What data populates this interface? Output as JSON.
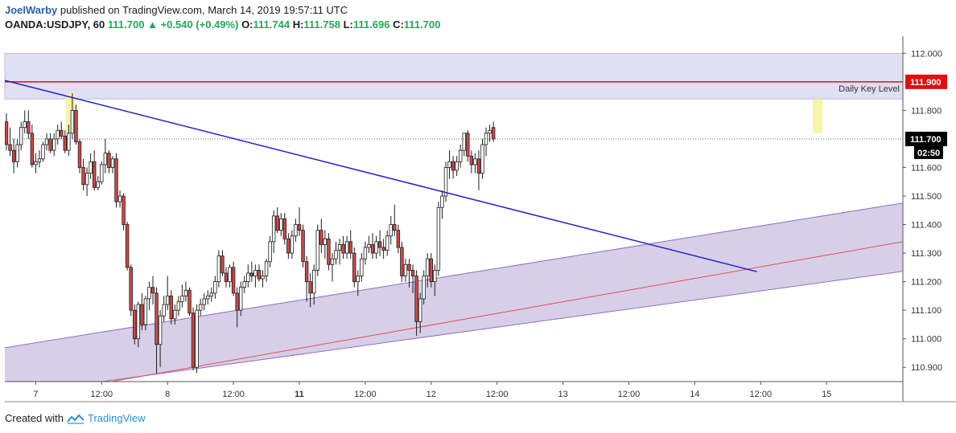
{
  "header": {
    "author": "JoelWarby",
    "published_text": "published on TradingView.com, March 14, 2019 19:57:11 UTC"
  },
  "symbol_line": {
    "symbol": "OANDA:USDJPY, 60",
    "last": "111.700",
    "arrow": "▲",
    "change": "+0.540 (+0.49%)",
    "o_label": "O:",
    "o_value": "111.744",
    "h_label": "H:",
    "h_value": "111.758",
    "l_label": "L:",
    "l_value": "111.696",
    "c_label": "C:",
    "c_value": "111.700"
  },
  "footer": {
    "created_with": "Created with",
    "brand": "TradingView"
  },
  "colors": {
    "up_candle": "#ffffff",
    "down_candle": "#d84545",
    "wick": "#1c1c1c",
    "trendline": "#2020d0",
    "key_level": "#e01010",
    "channel_fill": "#c9bfe0",
    "channel_border": "#9070c0",
    "channel_mid": "#e05050",
    "zone_fill": "#dfe0f4",
    "highlight": "#f6f3a0",
    "price_tag": "#000000",
    "key_tag": "#e01010"
  },
  "chart_data": {
    "type": "candlestick",
    "symbol": "OANDA:USDJPY",
    "timeframe": "60",
    "ylim": [
      110.85,
      112.06
    ],
    "y_ticks": [
      "112.000",
      "111.800",
      "111.600",
      "111.500",
      "111.400",
      "111.300",
      "111.200",
      "111.100",
      "111.000",
      "110.900"
    ],
    "x_ticks": [
      {
        "label": "7",
        "bold": false
      },
      {
        "label": "12:00",
        "bold": false
      },
      {
        "label": "8",
        "bold": false
      },
      {
        "label": "12:00",
        "bold": false
      },
      {
        "label": "11",
        "bold": true
      },
      {
        "label": "12:00",
        "bold": false
      },
      {
        "label": "12",
        "bold": false
      },
      {
        "label": "12:00",
        "bold": false
      },
      {
        "label": "13",
        "bold": false
      },
      {
        "label": "12:00",
        "bold": false
      },
      {
        "label": "14",
        "bold": false
      },
      {
        "label": "12:00",
        "bold": false
      },
      {
        "label": "15",
        "bold": false
      }
    ],
    "x_tick_index": [
      8,
      26,
      44,
      62,
      80,
      98,
      116,
      134,
      152,
      170,
      188,
      206,
      224
    ],
    "current_price": "111.700",
    "countdown": "02:50",
    "key_level": {
      "value": 111.9,
      "label": "Daily Key Level",
      "tag": "111.900"
    },
    "resistance_zone": [
      111.84,
      112.0
    ],
    "trendline": {
      "from": [
        0,
        111.905
      ],
      "to": [
        205,
        111.235
      ]
    },
    "channel": {
      "start_index": 0,
      "end_index": 247,
      "upper": [
        110.965,
        111.48
      ],
      "middle": [
        110.86,
        111.345
      ],
      "lower": [
        110.85,
        111.24
      ]
    },
    "highlights": [
      {
        "index": 17.5,
        "low": 111.72,
        "high": 111.86
      },
      {
        "index": 221.5,
        "low": 111.72,
        "high": 111.84
      }
    ],
    "candles": [
      [
        111.76,
        111.79,
        111.66,
        111.68
      ],
      [
        111.68,
        111.74,
        111.64,
        111.66
      ],
      [
        111.66,
        111.7,
        111.58,
        111.62
      ],
      [
        111.62,
        111.7,
        111.6,
        111.68
      ],
      [
        111.68,
        111.76,
        111.66,
        111.74
      ],
      [
        111.74,
        111.8,
        111.72,
        111.76
      ],
      [
        111.76,
        111.8,
        111.7,
        111.72
      ],
      [
        111.72,
        111.75,
        111.6,
        111.61
      ],
      [
        111.61,
        111.65,
        111.58,
        111.62
      ],
      [
        111.62,
        111.66,
        111.6,
        111.63
      ],
      [
        111.63,
        111.69,
        111.62,
        111.68
      ],
      [
        111.68,
        111.72,
        111.66,
        111.7
      ],
      [
        111.7,
        111.72,
        111.65,
        111.66
      ],
      [
        111.66,
        111.72,
        111.64,
        111.7
      ],
      [
        111.7,
        111.75,
        111.68,
        111.73
      ],
      [
        111.73,
        111.76,
        111.7,
        111.71
      ],
      [
        111.71,
        111.73,
        111.65,
        111.66
      ],
      [
        111.66,
        111.75,
        111.64,
        111.72
      ],
      [
        111.72,
        111.86,
        111.7,
        111.8
      ],
      [
        111.8,
        111.82,
        111.68,
        111.69
      ],
      [
        111.69,
        111.7,
        111.58,
        111.6
      ],
      [
        111.6,
        111.63,
        111.52,
        111.54
      ],
      [
        111.54,
        111.6,
        111.5,
        111.58
      ],
      [
        111.58,
        111.65,
        111.56,
        111.62
      ],
      [
        111.62,
        111.66,
        111.52,
        111.53
      ],
      [
        111.53,
        111.57,
        111.52,
        111.55
      ],
      [
        111.55,
        111.62,
        111.54,
        111.61
      ],
      [
        111.61,
        111.7,
        111.58,
        111.65
      ],
      [
        111.65,
        111.66,
        111.58,
        111.6
      ],
      [
        111.6,
        111.64,
        111.58,
        111.63
      ],
      [
        111.63,
        111.65,
        111.46,
        111.48
      ],
      [
        111.48,
        111.52,
        111.46,
        111.5
      ],
      [
        111.5,
        111.51,
        111.38,
        111.4
      ],
      [
        111.4,
        111.41,
        111.24,
        111.25
      ],
      [
        111.25,
        111.26,
        111.08,
        111.1
      ],
      [
        111.1,
        111.12,
        110.98,
        111.0
      ],
      [
        111.0,
        111.13,
        110.97,
        111.12
      ],
      [
        111.12,
        111.16,
        111.03,
        111.05
      ],
      [
        111.05,
        111.15,
        111.03,
        111.14
      ],
      [
        111.14,
        111.2,
        111.1,
        111.18
      ],
      [
        111.18,
        111.22,
        111.12,
        111.16
      ],
      [
        111.16,
        111.18,
        110.88,
        110.98
      ],
      [
        110.98,
        111.1,
        110.9,
        111.08
      ],
      [
        111.08,
        111.15,
        111.06,
        111.12
      ],
      [
        111.12,
        111.22,
        111.1,
        111.15
      ],
      [
        111.15,
        111.17,
        111.05,
        111.07
      ],
      [
        111.07,
        111.12,
        111.05,
        111.1
      ],
      [
        111.1,
        111.15,
        111.08,
        111.13
      ],
      [
        111.13,
        111.19,
        111.11,
        111.15
      ],
      [
        111.15,
        111.2,
        111.13,
        111.17
      ],
      [
        111.17,
        111.18,
        111.08,
        111.09
      ],
      [
        111.09,
        111.11,
        110.89,
        110.9
      ],
      [
        110.9,
        111.12,
        110.88,
        111.1
      ],
      [
        111.1,
        111.14,
        111.08,
        111.12
      ],
      [
        111.12,
        111.16,
        111.1,
        111.14
      ],
      [
        111.14,
        111.17,
        111.12,
        111.15
      ],
      [
        111.15,
        111.18,
        111.13,
        111.16
      ],
      [
        111.16,
        111.22,
        111.14,
        111.2
      ],
      [
        111.2,
        111.31,
        111.18,
        111.29
      ],
      [
        111.29,
        111.31,
        111.22,
        111.23
      ],
      [
        111.23,
        111.25,
        111.18,
        111.2
      ],
      [
        111.2,
        111.26,
        111.18,
        111.25
      ],
      [
        111.25,
        111.27,
        111.15,
        111.16
      ],
      [
        111.16,
        111.18,
        111.04,
        111.1
      ],
      [
        111.1,
        111.2,
        111.08,
        111.18
      ],
      [
        111.18,
        111.22,
        111.16,
        111.2
      ],
      [
        111.2,
        111.26,
        111.18,
        111.23
      ],
      [
        111.23,
        111.27,
        111.2,
        111.22
      ],
      [
        111.22,
        111.26,
        111.18,
        111.24
      ],
      [
        111.24,
        111.26,
        111.2,
        111.21
      ],
      [
        111.21,
        111.24,
        111.18,
        111.22
      ],
      [
        111.22,
        111.28,
        111.2,
        111.27
      ],
      [
        111.27,
        111.36,
        111.25,
        111.34
      ],
      [
        111.34,
        111.45,
        111.3,
        111.43
      ],
      [
        111.43,
        111.46,
        111.37,
        111.38
      ],
      [
        111.38,
        111.44,
        111.36,
        111.42
      ],
      [
        111.42,
        111.44,
        111.33,
        111.35
      ],
      [
        111.35,
        111.37,
        111.28,
        111.3
      ],
      [
        111.3,
        111.38,
        111.28,
        111.36
      ],
      [
        111.36,
        111.42,
        111.34,
        111.4
      ],
      [
        111.4,
        111.46,
        111.36,
        111.38
      ],
      [
        111.38,
        111.4,
        111.25,
        111.27
      ],
      [
        111.27,
        111.29,
        111.13,
        111.2
      ],
      [
        111.2,
        111.23,
        111.11,
        111.16
      ],
      [
        111.16,
        111.26,
        111.12,
        111.24
      ],
      [
        111.24,
        111.4,
        111.22,
        111.38
      ],
      [
        111.38,
        111.42,
        111.3,
        111.33
      ],
      [
        111.33,
        111.38,
        111.28,
        111.35
      ],
      [
        111.35,
        111.37,
        111.24,
        111.26
      ],
      [
        111.26,
        111.3,
        111.2,
        111.28
      ],
      [
        111.28,
        111.34,
        111.26,
        111.31
      ],
      [
        111.31,
        111.35,
        111.26,
        111.33
      ],
      [
        111.33,
        111.36,
        111.28,
        111.3
      ],
      [
        111.3,
        111.36,
        111.28,
        111.34
      ],
      [
        111.34,
        111.38,
        111.28,
        111.3
      ],
      [
        111.3,
        111.32,
        111.18,
        111.2
      ],
      [
        111.2,
        111.24,
        111.15,
        111.22
      ],
      [
        111.22,
        111.3,
        111.2,
        111.28
      ],
      [
        111.28,
        111.34,
        111.26,
        111.32
      ],
      [
        111.32,
        111.36,
        111.3,
        111.33
      ],
      [
        111.33,
        111.37,
        111.28,
        111.3
      ],
      [
        111.3,
        111.36,
        111.28,
        111.34
      ],
      [
        111.34,
        111.38,
        111.29,
        111.32
      ],
      [
        111.32,
        111.35,
        111.28,
        111.31
      ],
      [
        111.31,
        111.38,
        111.29,
        111.36
      ],
      [
        111.36,
        111.43,
        111.33,
        111.4
      ],
      [
        111.4,
        111.47,
        111.36,
        111.38
      ],
      [
        111.38,
        111.4,
        111.3,
        111.32
      ],
      [
        111.32,
        111.34,
        111.2,
        111.22
      ],
      [
        111.22,
        111.28,
        111.2,
        111.26
      ],
      [
        111.26,
        111.28,
        111.18,
        111.24
      ],
      [
        111.24,
        111.26,
        111.16,
        111.22
      ],
      [
        111.22,
        111.24,
        111.01,
        111.06
      ],
      [
        111.06,
        111.16,
        111.02,
        111.14
      ],
      [
        111.14,
        111.24,
        111.12,
        111.22
      ],
      [
        111.22,
        111.3,
        111.18,
        111.28
      ],
      [
        111.28,
        111.3,
        111.18,
        111.2
      ],
      [
        111.2,
        111.26,
        111.15,
        111.24
      ],
      [
        111.24,
        111.48,
        111.22,
        111.46
      ],
      [
        111.46,
        111.52,
        111.42,
        111.5
      ],
      [
        111.5,
        111.62,
        111.48,
        111.6
      ],
      [
        111.6,
        111.66,
        111.56,
        111.62
      ],
      [
        111.62,
        111.64,
        111.56,
        111.59
      ],
      [
        111.59,
        111.64,
        111.57,
        111.62
      ],
      [
        111.62,
        111.68,
        111.6,
        111.66
      ],
      [
        111.66,
        111.72,
        111.64,
        111.72
      ],
      [
        111.72,
        111.73,
        111.62,
        111.64
      ],
      [
        111.64,
        111.66,
        111.58,
        111.61
      ],
      [
        111.61,
        111.65,
        111.58,
        111.63
      ],
      [
        111.63,
        111.66,
        111.52,
        111.58
      ],
      [
        111.58,
        111.7,
        111.56,
        111.68
      ],
      [
        111.68,
        111.74,
        111.64,
        111.72
      ],
      [
        111.72,
        111.75,
        111.69,
        111.73
      ],
      [
        111.74,
        111.76,
        111.69,
        111.7
      ]
    ]
  }
}
